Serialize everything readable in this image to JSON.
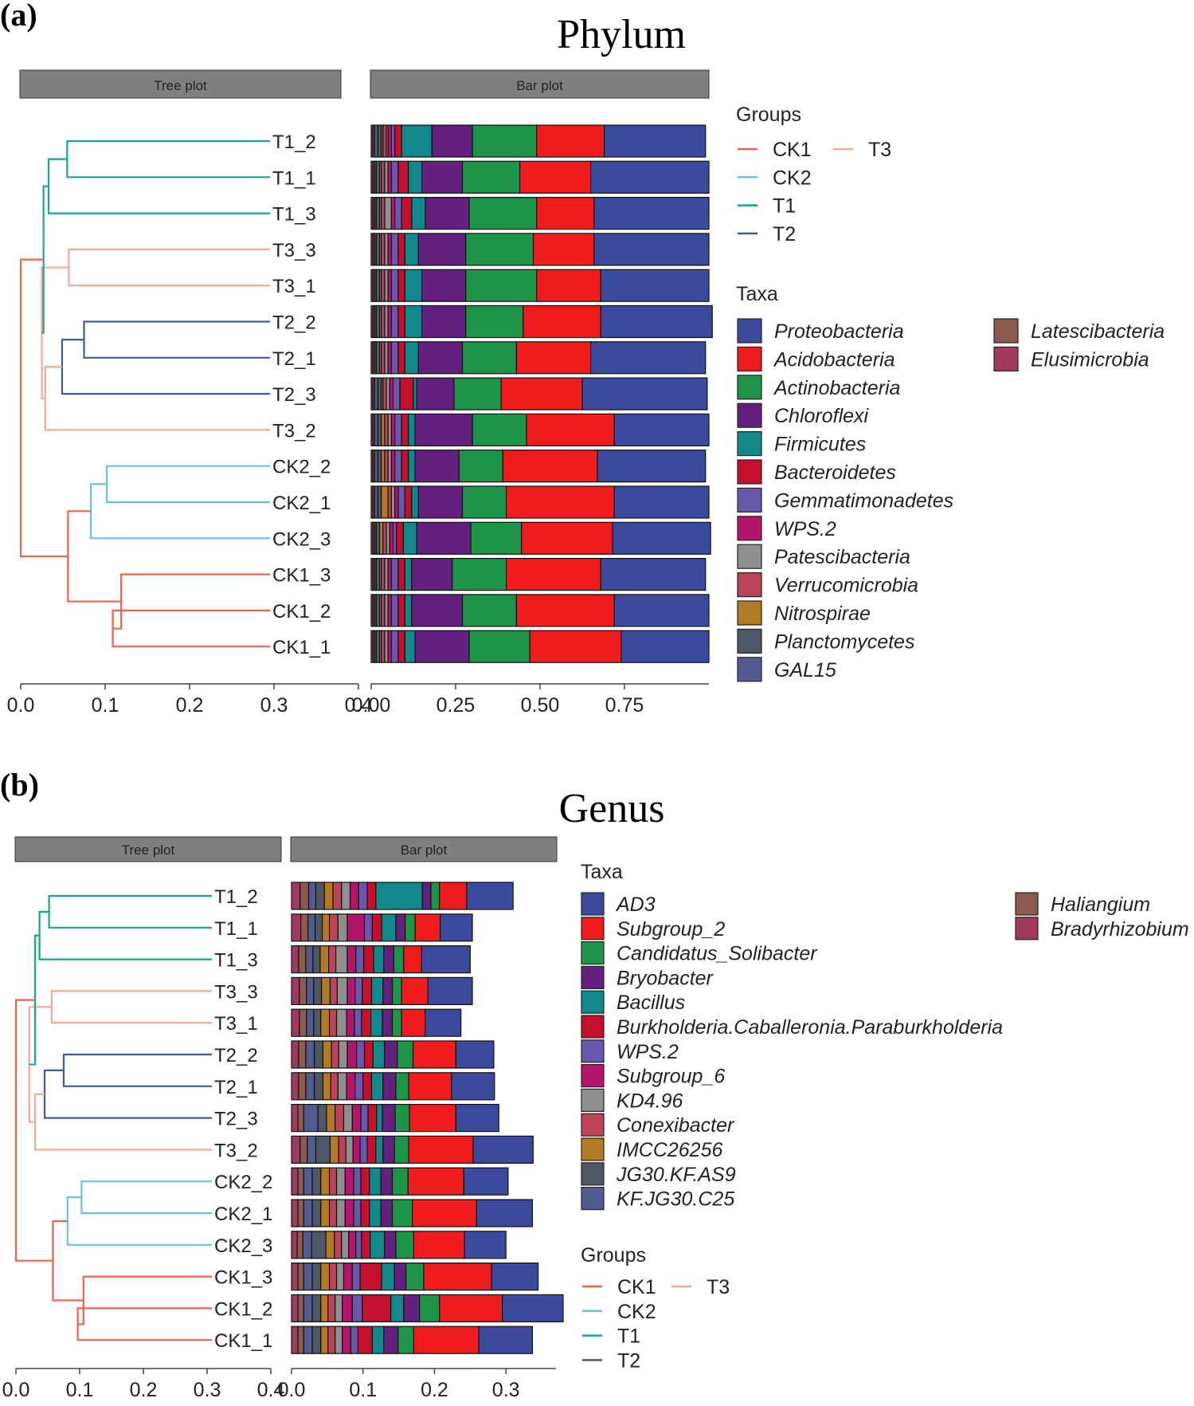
{
  "chart_data": [
    {
      "type": "bar",
      "panel_label": "(a)",
      "title": "Phylum",
      "tree_strip_label": "Tree plot",
      "bar_strip_label": "Bar plot",
      "tree_xlim": [
        0,
        0.4
      ],
      "tree_ticks": [
        "0.0",
        "0.1",
        "0.2",
        "0.3",
        "0.4"
      ],
      "bar_xlim": [
        0,
        1
      ],
      "bar_ticks": [
        "0.00",
        "0.25",
        "0.50",
        "0.75"
      ],
      "bar_tick_values": [
        0,
        0.25,
        0.5,
        0.75
      ],
      "samples": [
        "T1_2",
        "T1_1",
        "T1_3",
        "T3_3",
        "T3_1",
        "T2_2",
        "T2_1",
        "T2_3",
        "T3_2",
        "CK2_2",
        "CK2_1",
        "CK2_3",
        "CK1_3",
        "CK1_2",
        "CK1_1"
      ],
      "sample_groups": [
        "T1",
        "T1",
        "T1",
        "T3",
        "T3",
        "T2",
        "T2",
        "T2",
        "T3",
        "CK2",
        "CK2",
        "CK2",
        "CK1",
        "CK1",
        "CK1"
      ],
      "tree_nodes": [
        {
          "h": 0.055,
          "l": "T1_2",
          "r": "T1_1",
          "g": "T1"
        },
        {
          "h": 0.057,
          "l": "T3_3",
          "r": "T3_1",
          "g": "T3"
        },
        {
          "h": 0.075,
          "l": "T2_2",
          "r": "T2_1",
          "g": "T2"
        },
        {
          "h": 0.102,
          "l": "CK2_2",
          "r": "CK2_1",
          "g": "CK2"
        },
        {
          "h": 0.109,
          "l": "CK1_2",
          "r": "CK1_1",
          "g": "CK1"
        },
        {
          "h": 0.033,
          "l": 0,
          "r": "T1_3",
          "g": "T1"
        },
        {
          "h": 0.049,
          "l": 2,
          "r": "T2_3",
          "g": "T2"
        },
        {
          "h": 0.083,
          "l": 3,
          "r": "CK2_3",
          "g": "CK2"
        },
        {
          "h": 0.119,
          "l": "CK1_3",
          "r": 4,
          "g": "CK1"
        },
        {
          "h": 0.029,
          "l": 6,
          "r": "T3_2",
          "g": "T3"
        },
        {
          "h": 0.025,
          "l": 1,
          "r": 9,
          "g": "T3"
        },
        {
          "h": 0.027,
          "l": 5,
          "r": 10,
          "g": "T1"
        },
        {
          "h": 0.056,
          "l": 7,
          "r": 8,
          "g": "CK1"
        },
        {
          "h": 0.0,
          "l": 11,
          "r": 12,
          "g": "CK1"
        }
      ],
      "group_colors": {
        "CK1": "#f0624a",
        "CK2": "#62c7dd",
        "T1": "#16a58d",
        "T2": "#435a94",
        "T3": "#f5a892"
      },
      "groups_legend_title": "Groups",
      "groups_legend": [
        "CK1",
        "CK2",
        "T1",
        "T2",
        "T3"
      ],
      "taxa_legend_title": "Taxa",
      "taxa": [
        "Proteobacteria",
        "Acidobacteria",
        "Actinobacteria",
        "Chloroflexi",
        "Firmicutes",
        "Bacteroidetes",
        "Gemmatimonadetes",
        "WPS.2",
        "Patescibacteria",
        "Verrucomicrobia",
        "Nitrospirae",
        "Planctomycetes",
        "GAL15",
        "Latescibacteria",
        "Elusimicrobia"
      ],
      "taxa_colors": [
        "#3b4a9c",
        "#ee1c1c",
        "#1e9448",
        "#63207f",
        "#11898a",
        "#c4102c",
        "#6858ad",
        "#b2156a",
        "#8f8f8f",
        "#bd4358",
        "#b27a25",
        "#4e5766",
        "#515b8f",
        "#8c5b4d",
        "#a23a5d"
      ],
      "series": [
        {
          "name": "Proteobacteria",
          "values": [
            0.3,
            0.35,
            0.34,
            0.34,
            0.32,
            0.33,
            0.34,
            0.37,
            0.28,
            0.32,
            0.28,
            0.29,
            0.31,
            0.28,
            0.26
          ]
        },
        {
          "name": "Acidobacteria",
          "values": [
            0.2,
            0.21,
            0.17,
            0.18,
            0.19,
            0.23,
            0.22,
            0.24,
            0.26,
            0.28,
            0.32,
            0.27,
            0.28,
            0.29,
            0.27
          ]
        },
        {
          "name": "Actinobacteria",
          "values": [
            0.19,
            0.17,
            0.2,
            0.2,
            0.21,
            0.17,
            0.16,
            0.14,
            0.16,
            0.13,
            0.13,
            0.15,
            0.16,
            0.16,
            0.18
          ]
        },
        {
          "name": "Chloroflexi",
          "values": [
            0.12,
            0.12,
            0.13,
            0.14,
            0.13,
            0.13,
            0.13,
            0.11,
            0.17,
            0.13,
            0.13,
            0.16,
            0.12,
            0.15,
            0.16
          ]
        },
        {
          "name": "Firmicutes",
          "values": [
            0.09,
            0.04,
            0.04,
            0.04,
            0.05,
            0.05,
            0.04,
            0.01,
            0.02,
            0.02,
            0.02,
            0.04,
            0.02,
            0.02,
            0.03
          ]
        },
        {
          "name": "Bacteroidetes",
          "values": [
            0.02,
            0.03,
            0.03,
            0.02,
            0.02,
            0.02,
            0.02,
            0.04,
            0.02,
            0.02,
            0.02,
            0.02,
            0.02,
            0.02,
            0.02
          ]
        },
        {
          "name": "Gemmatimonadetes",
          "values": [
            0.01,
            0.02,
            0.02,
            0.02,
            0.02,
            0.02,
            0.02,
            0.02,
            0.02,
            0.02,
            0.02,
            0.01,
            0.02,
            0.02,
            0.02
          ]
        },
        {
          "name": "WPS.2",
          "values": [
            0.01,
            0.01,
            0.01,
            0.01,
            0.01,
            0.01,
            0.01,
            0.01,
            0.01,
            0.01,
            0.01,
            0.01,
            0.01,
            0.01,
            0.01
          ]
        },
        {
          "name": "Patescibacteria",
          "values": [
            0.005,
            0.01,
            0.02,
            0.01,
            0.01,
            0.01,
            0.01,
            0.01,
            0.01,
            0.01,
            0.01,
            0.01,
            0.01,
            0.01,
            0.01
          ]
        },
        {
          "name": "Verrucomicrobia",
          "values": [
            0.01,
            0.01,
            0.01,
            0.01,
            0.01,
            0.01,
            0.01,
            0.01,
            0.01,
            0.01,
            0.01,
            0.01,
            0.01,
            0.01,
            0.01
          ]
        },
        {
          "name": "Nitrospirae",
          "values": [
            0.005,
            0.005,
            0.005,
            0.005,
            0.005,
            0.005,
            0.005,
            0.005,
            0.01,
            0.01,
            0.02,
            0.01,
            0.005,
            0.005,
            0.005
          ]
        },
        {
          "name": "Planctomycetes",
          "values": [
            0.01,
            0.01,
            0.01,
            0.01,
            0.01,
            0.01,
            0.01,
            0.01,
            0.01,
            0.01,
            0.01,
            0.01,
            0.01,
            0.01,
            0.01
          ]
        },
        {
          "name": "GAL15",
          "values": [
            0.01,
            0.005,
            0.005,
            0.005,
            0.005,
            0.005,
            0.005,
            0.01,
            0.01,
            0.01,
            0.01,
            0.005,
            0.005,
            0.005,
            0.005
          ]
        },
        {
          "name": "Latescibacteria",
          "values": [
            0.005,
            0.005,
            0.005,
            0.005,
            0.005,
            0.005,
            0.005,
            0.005,
            0.005,
            0.005,
            0.005,
            0.005,
            0.005,
            0.005,
            0.005
          ]
        },
        {
          "name": "Elusimicrobia",
          "values": [
            0.005,
            0.005,
            0.005,
            0.005,
            0.005,
            0.005,
            0.005,
            0.005,
            0.005,
            0.005,
            0.005,
            0.005,
            0.005,
            0.005,
            0.005
          ]
        }
      ]
    },
    {
      "type": "bar",
      "panel_label": "(b)",
      "title": "Genus",
      "tree_strip_label": "Tree plot",
      "bar_strip_label": "Bar plot",
      "tree_xlim": [
        0,
        0.4
      ],
      "tree_ticks": [
        "0.0",
        "0.1",
        "0.2",
        "0.3",
        "0.4"
      ],
      "bar_xlim": [
        0,
        0.37
      ],
      "bar_ticks": [
        "0.0",
        "0.1",
        "0.2",
        "0.3"
      ],
      "bar_tick_values": [
        0,
        0.1,
        0.2,
        0.3
      ],
      "samples": [
        "T1_2",
        "T1_1",
        "T1_3",
        "T3_3",
        "T3_1",
        "T2_2",
        "T2_1",
        "T2_3",
        "T3_2",
        "CK2_2",
        "CK2_1",
        "CK2_3",
        "CK1_3",
        "CK1_2",
        "CK1_1"
      ],
      "sample_groups": [
        "T1",
        "T1",
        "T1",
        "T3",
        "T3",
        "T2",
        "T2",
        "T2",
        "T3",
        "CK2",
        "CK2",
        "CK2",
        "CK1",
        "CK1",
        "CK1"
      ],
      "tree_nodes": [
        {
          "h": 0.052,
          "l": "T1_2",
          "r": "T1_1",
          "g": "T1"
        },
        {
          "h": 0.056,
          "l": "T3_3",
          "r": "T3_1",
          "g": "T3"
        },
        {
          "h": 0.075,
          "l": "T2_2",
          "r": "T2_1",
          "g": "T2"
        },
        {
          "h": 0.103,
          "l": "CK2_2",
          "r": "CK2_1",
          "g": "CK2"
        },
        {
          "h": 0.097,
          "l": "CK1_2",
          "r": "CK1_1",
          "g": "CK1"
        },
        {
          "h": 0.037,
          "l": 0,
          "r": "T1_3",
          "g": "T1"
        },
        {
          "h": 0.045,
          "l": 2,
          "r": "T2_3",
          "g": "T2"
        },
        {
          "h": 0.081,
          "l": 3,
          "r": "CK2_3",
          "g": "CK2"
        },
        {
          "h": 0.106,
          "l": "CK1_3",
          "r": 4,
          "g": "CK1"
        },
        {
          "h": 0.03,
          "l": 6,
          "r": "T3_2",
          "g": "T3"
        },
        {
          "h": 0.021,
          "l": 1,
          "r": 9,
          "g": "T3"
        },
        {
          "h": 0.03,
          "l": 5,
          "r": 10,
          "g": "T1"
        },
        {
          "h": 0.058,
          "l": 7,
          "r": 8,
          "g": "CK1"
        },
        {
          "h": 0.0,
          "l": 11,
          "r": 12,
          "g": "CK1"
        }
      ],
      "group_colors": {
        "CK1": "#f0624a",
        "CK2": "#62c7dd",
        "T1": "#16a58d",
        "T2": "#435a94",
        "T3": "#f5a892"
      },
      "groups_legend_title": "Groups",
      "groups_legend": [
        "CK1",
        "CK2",
        "T1",
        "T2",
        "T3"
      ],
      "taxa_legend_title": "Taxa",
      "taxa": [
        "AD3",
        "Subgroup_2",
        "Candidatus_Solibacter",
        "Bryobacter",
        "Bacillus",
        "Burkholderia.Caballeronia.Paraburkholderia",
        "WPS.2",
        "Subgroup_6",
        "KD4.96",
        "Conexibacter",
        "IMCC26256",
        "JG30.KF.AS9",
        "KF.JG30.C25",
        "Haliangium",
        "Bradyrhizobium"
      ],
      "taxa_colors": [
        "#3b4a9c",
        "#ee1c1c",
        "#1e9448",
        "#63207f",
        "#11898a",
        "#c4102c",
        "#6858ad",
        "#b2156a",
        "#8f8f8f",
        "#bd4358",
        "#b27a25",
        "#4e5766",
        "#515b8f",
        "#8c5b4d",
        "#a23a5d"
      ],
      "series": [
        {
          "name": "AD3",
          "values": [
            0.065,
            0.045,
            0.068,
            0.062,
            0.05,
            0.053,
            0.06,
            0.06,
            0.084,
            0.062,
            0.078,
            0.058,
            0.065,
            0.085,
            0.075
          ]
        },
        {
          "name": "Subgroup_2",
          "values": [
            0.038,
            0.035,
            0.025,
            0.037,
            0.033,
            0.06,
            0.06,
            0.065,
            0.09,
            0.078,
            0.09,
            0.071,
            0.095,
            0.088,
            0.091
          ]
        },
        {
          "name": "Candidatus_Solibacter",
          "values": [
            0.012,
            0.014,
            0.014,
            0.013,
            0.013,
            0.022,
            0.018,
            0.02,
            0.02,
            0.022,
            0.028,
            0.025,
            0.025,
            0.028,
            0.022
          ]
        },
        {
          "name": "Bryobacter",
          "values": [
            0.012,
            0.013,
            0.014,
            0.013,
            0.014,
            0.018,
            0.018,
            0.018,
            0.016,
            0.016,
            0.016,
            0.016,
            0.016,
            0.022,
            0.02
          ]
        },
        {
          "name": "Bacillus",
          "values": [
            0.065,
            0.02,
            0.014,
            0.016,
            0.016,
            0.016,
            0.016,
            0.008,
            0.01,
            0.016,
            0.016,
            0.02,
            0.018,
            0.018,
            0.016
          ]
        },
        {
          "name": "Burkholderia.Caballeronia.Paraburkholderia",
          "values": [
            0.012,
            0.013,
            0.014,
            0.013,
            0.013,
            0.012,
            0.012,
            0.012,
            0.012,
            0.012,
            0.012,
            0.012,
            0.03,
            0.04,
            0.02
          ]
        },
        {
          "name": "WPS.2",
          "values": [
            0.012,
            0.011,
            0.011,
            0.01,
            0.01,
            0.011,
            0.011,
            0.01,
            0.01,
            0.01,
            0.01,
            0.008,
            0.011,
            0.014,
            0.01
          ]
        },
        {
          "name": "Subgroup_6",
          "values": [
            0.012,
            0.024,
            0.012,
            0.011,
            0.011,
            0.013,
            0.012,
            0.012,
            0.01,
            0.012,
            0.012,
            0.01,
            0.012,
            0.014,
            0.012
          ]
        },
        {
          "name": "KD4.96",
          "values": [
            0.012,
            0.013,
            0.016,
            0.014,
            0.014,
            0.012,
            0.012,
            0.012,
            0.01,
            0.012,
            0.012,
            0.01,
            0.01,
            0.01,
            0.01
          ]
        },
        {
          "name": "Conexibacter",
          "values": [
            0.012,
            0.012,
            0.01,
            0.01,
            0.01,
            0.01,
            0.01,
            0.012,
            0.01,
            0.01,
            0.01,
            0.01,
            0.01,
            0.01,
            0.01
          ]
        },
        {
          "name": "IMCC26256",
          "values": [
            0.012,
            0.01,
            0.012,
            0.012,
            0.012,
            0.012,
            0.011,
            0.012,
            0.012,
            0.012,
            0.012,
            0.012,
            0.012,
            0.01,
            0.01
          ]
        },
        {
          "name": "JG30.KF.AS9",
          "values": [
            0.012,
            0.01,
            0.01,
            0.011,
            0.01,
            0.012,
            0.012,
            0.012,
            0.02,
            0.012,
            0.012,
            0.02,
            0.012,
            0.012,
            0.012
          ]
        },
        {
          "name": "KF.JG30.C25",
          "values": [
            0.01,
            0.01,
            0.01,
            0.01,
            0.01,
            0.012,
            0.012,
            0.02,
            0.012,
            0.012,
            0.012,
            0.012,
            0.012,
            0.012,
            0.012
          ]
        },
        {
          "name": "Haliangium",
          "values": [
            0.012,
            0.01,
            0.01,
            0.01,
            0.01,
            0.01,
            0.01,
            0.008,
            0.01,
            0.008,
            0.008,
            0.008,
            0.008,
            0.008,
            0.008
          ]
        },
        {
          "name": "Bradyrhizobium",
          "values": [
            0.012,
            0.013,
            0.01,
            0.011,
            0.011,
            0.01,
            0.01,
            0.009,
            0.012,
            0.009,
            0.009,
            0.008,
            0.009,
            0.009,
            0.009
          ]
        }
      ]
    }
  ]
}
